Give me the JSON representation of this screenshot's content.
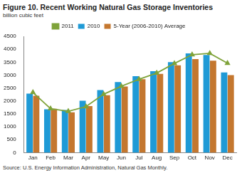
{
  "chart_data": {
    "type": "bar",
    "title": "Figure 10. Recent Working Natural Gas Storage Inventories",
    "y_label": "billion cubic feet",
    "source": "Source: U.S. Energy Information Administration, Natural Gas Monthly.",
    "categories": [
      "Jan",
      "Feb",
      "Mar",
      "Apr",
      "May",
      "Jun",
      "Jul",
      "Aug",
      "Sep",
      "Oct",
      "Nov",
      "Dec"
    ],
    "series": [
      {
        "name": "2010",
        "type": "bar",
        "color": "#1f9ad6",
        "values": [
          2280,
          1680,
          1650,
          2010,
          2420,
          2730,
          2960,
          3150,
          3500,
          3840,
          3780,
          3100
        ]
      },
      {
        "name": "5-Year (2006-2010) Average",
        "type": "bar",
        "color": "#c4772f",
        "values": [
          2200,
          1700,
          1560,
          1800,
          2220,
          2560,
          2840,
          3050,
          3380,
          3620,
          3560,
          3000
        ]
      },
      {
        "name": "2011",
        "type": "line",
        "color": "#7fa33a",
        "marker": "triangle",
        "values": [
          2330,
          1700,
          1600,
          1780,
          2260,
          2570,
          2840,
          3080,
          3450,
          3790,
          3840,
          3460
        ]
      }
    ],
    "ylim": [
      0,
      4500
    ],
    "yticks": [
      0,
      500,
      1000,
      1500,
      2000,
      2500,
      3000,
      3500,
      4000,
      4500
    ],
    "grid": false,
    "legend": "top"
  }
}
